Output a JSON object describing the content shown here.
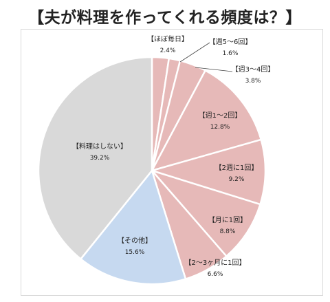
{
  "chart_data": {
    "type": "pie",
    "title": "【夫が料理を作ってくれる頻度は？】",
    "start_angle_deg": 0,
    "direction": "clockwise",
    "slices": [
      {
        "label": "【ほぼ毎日】",
        "value": 2.4,
        "display": "2.4%",
        "color": "#e6b9b8"
      },
      {
        "label": "【週5～6回】",
        "value": 1.6,
        "display": "1.6%",
        "color": "#e6b9b8"
      },
      {
        "label": "【週3～4回】",
        "value": 3.8,
        "display": "3.8%",
        "color": "#e6b9b8"
      },
      {
        "label": "【週1～2回】",
        "value": 12.8,
        "display": "12.8%",
        "color": "#e6b9b8"
      },
      {
        "label": "【2週に1回】",
        "value": 9.2,
        "display": "9.2%",
        "color": "#e6b9b8"
      },
      {
        "label": "【月に1回】",
        "value": 8.8,
        "display": "8.8%",
        "color": "#e6b9b8"
      },
      {
        "label": "【2～3ヶ月に1回】",
        "value": 6.6,
        "display": "6.6%",
        "color": "#e6b9b8"
      },
      {
        "label": "【その他】",
        "value": 15.6,
        "display": "15.6%",
        "color": "#c6d9f0"
      },
      {
        "label": "【料理はしない】",
        "value": 39.2,
        "display": "39.2%",
        "color": "#d9d9d9"
      }
    ]
  }
}
